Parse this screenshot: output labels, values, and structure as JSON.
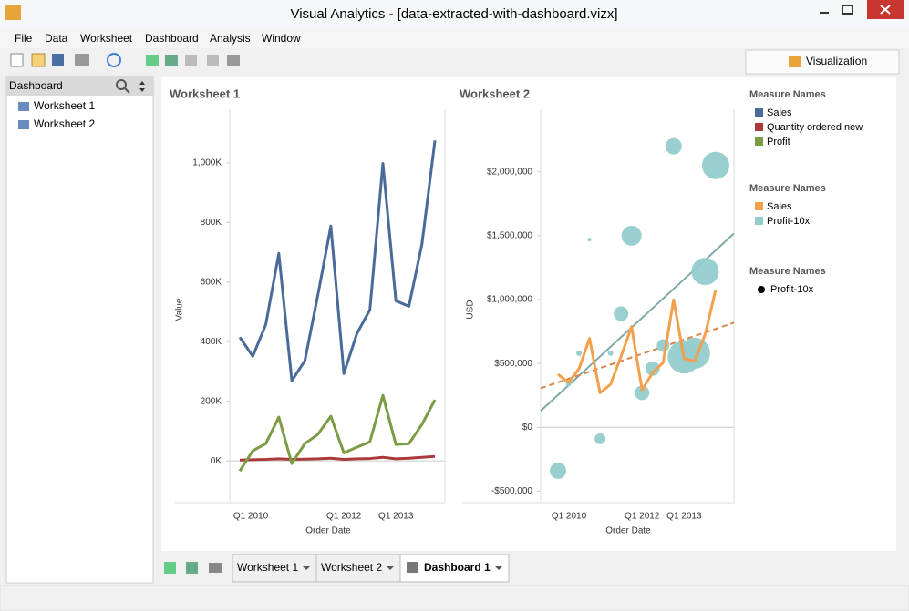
{
  "window": {
    "title": "Visual Analytics - [data-extracted-with-dashboard.vizx]"
  },
  "menu": [
    "File",
    "Data",
    "Worksheet",
    "Dashboard",
    "Analysis",
    "Window"
  ],
  "right_tab": "Visualization",
  "sidebar": {
    "title": "Dashboard",
    "items": [
      "Worksheet 1",
      "Worksheet 2"
    ]
  },
  "bottom_tabs": [
    "Worksheet 1",
    "Worksheet 2",
    "Dashboard 1"
  ],
  "chart_data": [
    {
      "type": "line",
      "title": "Worksheet 1",
      "x_label": "Order Date",
      "y_label": "Value",
      "legend_title": "Measure Names",
      "categories": [
        "Q1 2010",
        null,
        null,
        null,
        null,
        null,
        null,
        null,
        "Q1 2012",
        null,
        null,
        null,
        "Q1 2013",
        null,
        null,
        null
      ],
      "series": [
        {
          "name": "Sales",
          "color": "#4a6b9a",
          "values": [
            415000,
            351000,
            458000,
            696000,
            269000,
            336000,
            556000,
            788000,
            293000,
            427000,
            507000,
            998000,
            537000,
            519000,
            727000,
            1075000
          ]
        },
        {
          "name": "Quantity ordered new",
          "color": "#a93b3b",
          "values": [
            3000,
            4000,
            5000,
            7000,
            5000,
            6000,
            7000,
            9000,
            5000,
            7000,
            8000,
            12000,
            7000,
            9000,
            12000,
            15000
          ]
        },
        {
          "name": "Profit",
          "color": "#7b9b45",
          "values": [
            -34000,
            34000,
            58000,
            147000,
            -9000,
            58000,
            89000,
            150000,
            27000,
            46000,
            64000,
            220000,
            55000,
            58000,
            122000,
            205000
          ]
        }
      ],
      "ylim": [
        -140000,
        1180000
      ],
      "yticks": [
        {
          "value": 0,
          "label": "0K"
        },
        {
          "value": 200000,
          "label": "200K"
        },
        {
          "value": 400000,
          "label": "400K"
        },
        {
          "value": 600000,
          "label": "600K"
        },
        {
          "value": 800000,
          "label": "800K"
        },
        {
          "value": 1000000,
          "label": "1,000K"
        }
      ],
      "zero_line": true
    },
    {
      "type": "bubble",
      "title": "Worksheet 2",
      "x_label": "Order Date",
      "y_label": "USD",
      "legend_title": "Measure Names",
      "categories": [
        "Q1 2010",
        null,
        null,
        null,
        null,
        null,
        null,
        null,
        "Q1 2012",
        null,
        null,
        null,
        "Q1 2013",
        null,
        null,
        null
      ],
      "series": [
        {
          "name": "Sales",
          "color": "#f3a04d",
          "mark": "line",
          "values": [
            415000,
            351000,
            458000,
            696000,
            269000,
            336000,
            556000,
            788000,
            293000,
            427000,
            507000,
            998000,
            537000,
            519000,
            727000,
            1075000
          ]
        },
        {
          "name": "Profit-10x",
          "color": "#94cccc",
          "mark": "circle",
          "values": [
            -340000,
            340000,
            580000,
            1470000,
            -90000,
            580000,
            890000,
            1500000,
            270000,
            460000,
            640000,
            2200000,
            550000,
            580000,
            1220000,
            2050000
          ],
          "sizes": [
            81,
            9,
            9,
            4,
            36,
            9,
            64,
            121,
            64,
            64,
            49,
            81,
            324,
            289,
            225,
            225
          ]
        }
      ],
      "trendlines": [
        {
          "color": "#7fa9a8",
          "dash": false,
          "values": [
            128000,
            1517000
          ]
        },
        {
          "color": "#d9844a",
          "dash": true,
          "values": [
            306000,
            819000
          ]
        }
      ],
      "ylim": [
        -590000,
        2490000
      ],
      "yticks": [
        {
          "value": -500000,
          "label": "-$500,000"
        },
        {
          "value": 0,
          "label": "$0"
        },
        {
          "value": 500000,
          "label": "$500,000"
        },
        {
          "value": 1000000,
          "label": "$1,000,000"
        },
        {
          "value": 1500000,
          "label": "$1,500,000"
        },
        {
          "value": 2000000,
          "label": "$2,000,000"
        }
      ],
      "zero_line": true
    }
  ],
  "size_legend": {
    "title": "Measure Names",
    "label": "Profit-10x"
  }
}
